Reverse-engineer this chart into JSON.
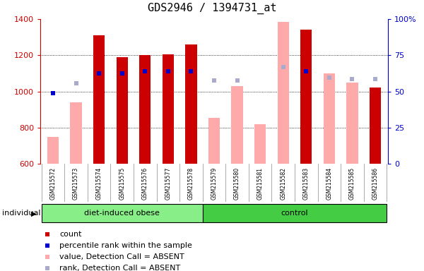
{
  "title": "GDS2946 / 1394731_at",
  "samples": [
    "GSM215572",
    "GSM215573",
    "GSM215574",
    "GSM215575",
    "GSM215576",
    "GSM215577",
    "GSM215578",
    "GSM215579",
    "GSM215580",
    "GSM215581",
    "GSM215582",
    "GSM215583",
    "GSM215584",
    "GSM215585",
    "GSM215586"
  ],
  "n_obese": 7,
  "n_control": 8,
  "group_labels": [
    "diet-induced obese",
    "control"
  ],
  "red_bars": [
    null,
    null,
    1310,
    1190,
    1200,
    1205,
    1260,
    null,
    null,
    null,
    null,
    1340,
    null,
    null,
    1020
  ],
  "pink_bars": [
    750,
    940,
    null,
    null,
    null,
    null,
    null,
    855,
    1030,
    820,
    1385,
    null,
    1100,
    1050,
    null
  ],
  "blue_squares": [
    990,
    null,
    1100,
    1100,
    1110,
    1110,
    1110,
    null,
    null,
    null,
    null,
    1110,
    null,
    null,
    null
  ],
  "light_blue_squares": [
    null,
    1045,
    null,
    null,
    null,
    null,
    null,
    1060,
    1060,
    null,
    1135,
    null,
    1075,
    1070,
    1070
  ],
  "bar_bottom": 600,
  "ylim_left": [
    600,
    1400
  ],
  "ylim_right": [
    0,
    100
  ],
  "yticks_left": [
    600,
    800,
    1000,
    1200,
    1400
  ],
  "yticks_right": [
    0,
    25,
    50,
    75,
    100
  ],
  "ytick_right_labels": [
    "0",
    "25",
    "50",
    "75",
    "100%"
  ],
  "grid_lines": [
    800,
    1000,
    1200
  ],
  "left_axis_color": "#cc0000",
  "right_axis_color": "#0000cc",
  "red_bar_color": "#cc0000",
  "pink_bar_color": "#ffaaaa",
  "blue_sq_color": "#0000cc",
  "light_blue_sq_color": "#aaaacc",
  "group1_color": "#88ee88",
  "group2_color": "#44cc44",
  "plot_bg": "#ffffff",
  "label_bg": "#d0d0d0",
  "individual_label": "individual",
  "legend_items": [
    "count",
    "percentile rank within the sample",
    "value, Detection Call = ABSENT",
    "rank, Detection Call = ABSENT"
  ],
  "legend_colors": [
    "#cc0000",
    "#0000cc",
    "#ffaaaa",
    "#aaaacc"
  ],
  "bar_width": 0.5,
  "title_fontsize": 11,
  "axis_tick_fontsize": 8,
  "sample_fontsize": 5.5,
  "group_fontsize": 8,
  "legend_fontsize": 8
}
